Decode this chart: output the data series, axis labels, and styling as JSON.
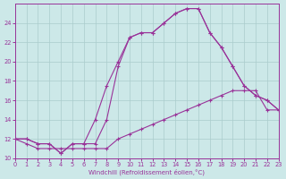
{
  "xlabel": "Windchill (Refroidissement éolien,°C)",
  "background_color": "#cce8e8",
  "grid_color": "#aacccc",
  "line_color": "#993399",
  "xlim": [
    0,
    23
  ],
  "ylim": [
    10,
    26
  ],
  "ytick_vals": [
    10,
    12,
    14,
    16,
    18,
    20,
    22,
    24
  ],
  "xtick_vals": [
    0,
    1,
    2,
    3,
    4,
    5,
    6,
    7,
    8,
    9,
    10,
    11,
    12,
    13,
    14,
    15,
    16,
    17,
    18,
    19,
    20,
    21,
    22,
    23
  ],
  "series1_x": [
    0,
    1,
    2,
    3,
    4,
    5,
    6,
    7,
    8,
    9,
    10,
    11,
    12,
    13,
    14,
    15,
    16,
    17,
    18,
    19,
    20,
    21,
    22,
    23
  ],
  "series1_y": [
    12,
    12,
    11.5,
    11.5,
    10.5,
    11.5,
    11.5,
    11.5,
    14,
    19.5,
    22.5,
    23,
    23,
    24,
    25,
    25.5,
    25.5,
    23,
    21.5,
    19.5,
    17.5,
    16.5,
    16,
    15
  ],
  "series2_x": [
    0,
    1,
    2,
    3,
    4,
    5,
    6,
    7,
    8,
    9,
    10,
    11,
    12,
    13,
    14,
    15,
    16,
    17,
    18,
    19,
    20,
    21,
    22,
    23
  ],
  "series2_y": [
    12,
    12,
    11.5,
    11.5,
    10.5,
    11.5,
    11.5,
    14,
    17.5,
    20,
    22.5,
    23,
    23,
    24,
    25,
    25.5,
    25.5,
    23,
    21.5,
    19.5,
    17.5,
    16.5,
    16,
    15
  ],
  "series3_x": [
    0,
    1,
    2,
    3,
    4,
    5,
    6,
    7,
    8,
    9,
    10,
    11,
    12,
    13,
    14,
    15,
    16,
    17,
    18,
    19,
    20,
    21,
    22,
    23
  ],
  "series3_y": [
    12,
    11.5,
    11,
    11,
    11,
    11,
    11,
    11,
    11,
    12,
    12.5,
    13,
    13.5,
    14,
    14.5,
    15,
    15.5,
    16,
    16.5,
    17,
    17,
    17,
    15,
    15
  ]
}
